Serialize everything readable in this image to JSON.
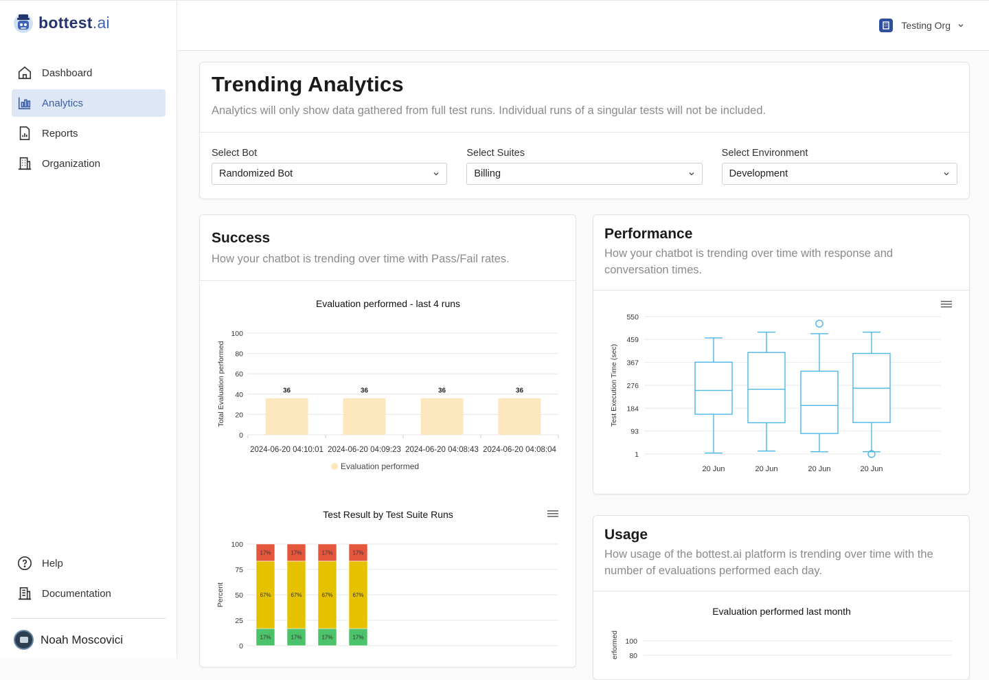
{
  "brand": {
    "name_bold": "bottest",
    "name_light": ".ai"
  },
  "nav": {
    "items": [
      {
        "label": "Dashboard",
        "icon": "home-icon"
      },
      {
        "label": "Analytics",
        "icon": "bar-chart-icon"
      },
      {
        "label": "Reports",
        "icon": "report-icon"
      },
      {
        "label": "Organization",
        "icon": "building-icon"
      }
    ],
    "bottom": [
      {
        "label": "Help",
        "icon": "help-icon"
      },
      {
        "label": "Documentation",
        "icon": "document-icon"
      }
    ],
    "user_name": "Noah Moscovici"
  },
  "topbar": {
    "org_name": "Testing Org"
  },
  "header": {
    "title": "Trending Analytics",
    "subtitle": "Analytics will only show data gathered from full test runs. Individual runs of a singular tests will not be included."
  },
  "filters": {
    "bot": {
      "label": "Select Bot",
      "value": "Randomized Bot"
    },
    "suites": {
      "label": "Select Suites",
      "value": "Billing"
    },
    "environment": {
      "label": "Select Environment",
      "value": "Development"
    }
  },
  "success": {
    "title": "Success",
    "subtitle": "How your chatbot is trending over time with Pass/Fail rates."
  },
  "performance": {
    "title": "Performance",
    "subtitle": "How your chatbot is trending over time with response and conversation times."
  },
  "usage": {
    "title": "Usage",
    "subtitle": "How usage of the bottest.ai platform is trending over time with the number of evaluations performed each day."
  },
  "chart_data": [
    {
      "type": "bar",
      "title": "Evaluation performed - last 4 runs",
      "ylabel": "Total Evaluation performed",
      "categories": [
        "2024-06-20 04:10:01",
        "2024-06-20 04:09:23",
        "2024-06-20 04:08:43",
        "2024-06-20 04:08:04"
      ],
      "series": [
        {
          "name": "Evaluation performed",
          "values": [
            36,
            36,
            36,
            36
          ]
        }
      ],
      "yticks": [
        0,
        20,
        40,
        60,
        80,
        100
      ],
      "ylim": [
        0,
        100
      ],
      "color": "#fde7bf",
      "grid": true,
      "legend": "bottom"
    },
    {
      "type": "bar",
      "stacked": true,
      "title": "Test Result by Test Suite Runs",
      "ylabel": "Percent",
      "yticks": [
        0,
        25,
        50,
        75,
        100
      ],
      "ylim": [
        0,
        100
      ],
      "runs": 4,
      "series": [
        {
          "values": [
            17,
            17,
            17,
            17
          ],
          "color": "#4cc26a"
        },
        {
          "values": [
            67,
            67,
            67,
            67
          ],
          "color": "#e6c100"
        },
        {
          "values": [
            17,
            17,
            17,
            17
          ],
          "color": "#e5573d"
        }
      ],
      "grid": true
    },
    {
      "type": "boxplot",
      "ylabel": "Test Execution Time (sec)",
      "categories": [
        "20 Jun",
        "20 Jun",
        "20 Jun",
        "20 Jun"
      ],
      "yticks": [
        1,
        93,
        184,
        276,
        367,
        459,
        550
      ],
      "ylim": [
        1,
        550
      ],
      "boxes": [
        {
          "min": 5,
          "q1": 160,
          "median": 255,
          "q3": 368,
          "max": 465,
          "outliers": []
        },
        {
          "min": 13,
          "q1": 126,
          "median": 260,
          "q3": 407,
          "max": 488,
          "outliers": []
        },
        {
          "min": 10,
          "q1": 83,
          "median": 195,
          "q3": 332,
          "max": 482,
          "outliers": [
            522
          ]
        },
        {
          "min": 10,
          "q1": 127,
          "median": 264,
          "q3": 403,
          "max": 488,
          "outliers": [
            1
          ]
        }
      ],
      "color": "#4bb6e8",
      "grid": true
    },
    {
      "type": "bar",
      "title": "Evaluation performed last month",
      "ylabel": "erformed",
      "yticks": [
        80,
        100
      ]
    }
  ]
}
